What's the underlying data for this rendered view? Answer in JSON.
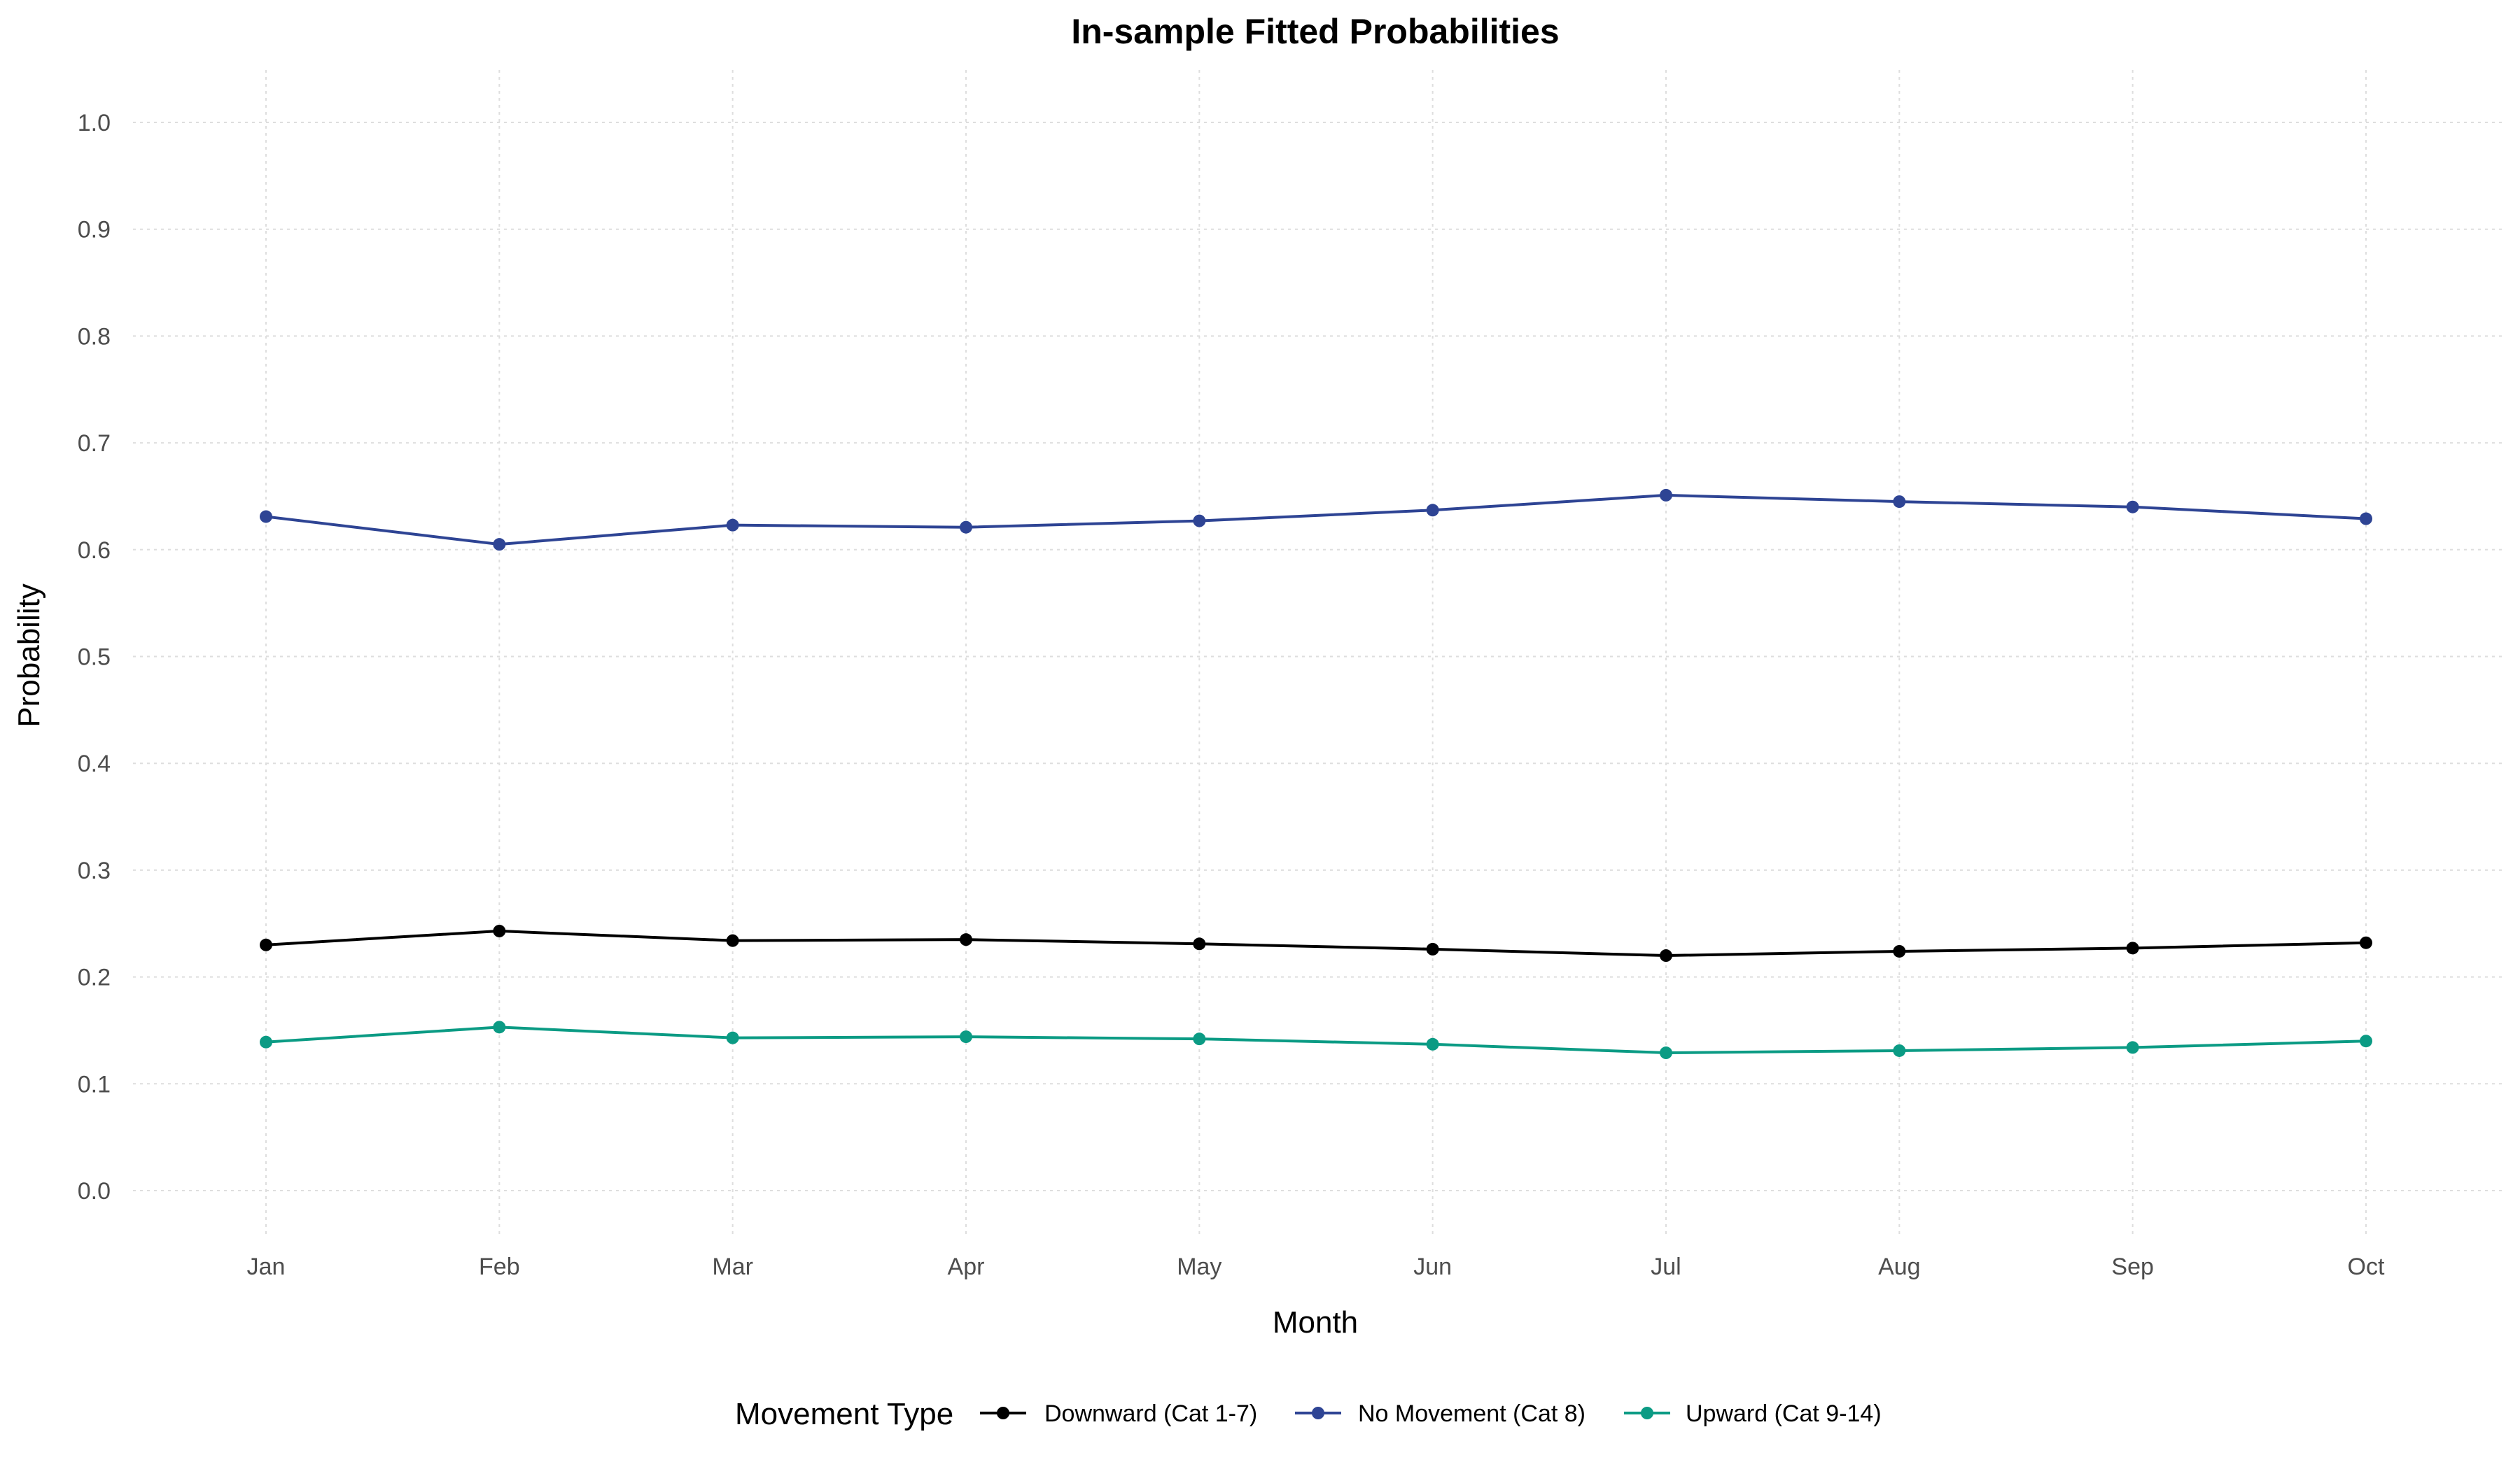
{
  "chart_data": {
    "type": "line",
    "title": "In-sample Fitted Probabilities",
    "xlabel": "Month",
    "ylabel": "Probability",
    "categories": [
      "Jan",
      "Feb",
      "Mar",
      "Apr",
      "May",
      "Jun",
      "Jul",
      "Aug",
      "Sep",
      "Oct"
    ],
    "ylim": [
      0.0,
      1.0
    ],
    "yticks": [
      "0.0",
      "0.1",
      "0.2",
      "0.3",
      "0.4",
      "0.5",
      "0.6",
      "0.7",
      "0.8",
      "0.9",
      "1.0"
    ],
    "grid": true,
    "legend": {
      "title": "Movement Type",
      "position": "bottom"
    },
    "series": [
      {
        "name": "Downward (Cat 1-7)",
        "color": "#000000",
        "values": [
          0.23,
          0.243,
          0.234,
          0.235,
          0.231,
          0.226,
          0.22,
          0.224,
          0.227,
          0.232
        ]
      },
      {
        "name": "No Movement (Cat 8)",
        "color": "#2e4494",
        "values": [
          0.631,
          0.605,
          0.623,
          0.621,
          0.627,
          0.637,
          0.651,
          0.645,
          0.64,
          0.629
        ]
      },
      {
        "name": "Upward (Cat 9-14)",
        "color": "#0b9b84",
        "values": [
          0.139,
          0.153,
          0.143,
          0.144,
          0.142,
          0.137,
          0.129,
          0.131,
          0.134,
          0.14
        ]
      }
    ]
  }
}
